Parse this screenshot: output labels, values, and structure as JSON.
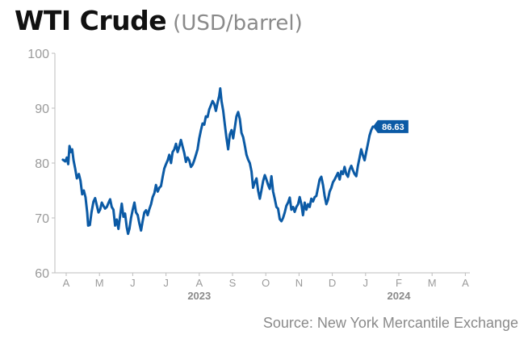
{
  "chart_data": {
    "type": "line",
    "title": "WTI Crude",
    "unit_label": "(USD/barrel)",
    "ylim": [
      60,
      100
    ],
    "yticks": [
      60,
      70,
      80,
      90,
      100
    ],
    "grid": false,
    "month_labels": [
      "A",
      "M",
      "J",
      "J",
      "A",
      "S",
      "O",
      "N",
      "D",
      "J",
      "F",
      "M",
      "A"
    ],
    "year_labels": [
      {
        "label": "2023",
        "under_month_index": 4
      },
      {
        "label": "2024",
        "under_month_index": 10
      }
    ],
    "last_value_label": "86.63",
    "series": [
      {
        "color": "#0b5aa5",
        "points": [
          [
            -0.1,
            80.6
          ],
          [
            -0.03,
            80.3
          ],
          [
            0.02,
            81.0
          ],
          [
            0.06,
            79.8
          ],
          [
            0.1,
            83.1
          ],
          [
            0.14,
            82.0
          ],
          [
            0.18,
            82.5
          ],
          [
            0.22,
            80.5
          ],
          [
            0.27,
            79.0
          ],
          [
            0.32,
            77.2
          ],
          [
            0.38,
            78.0
          ],
          [
            0.43,
            76.8
          ],
          [
            0.48,
            74.3
          ],
          [
            0.53,
            75.0
          ],
          [
            0.58,
            73.8
          ],
          [
            0.63,
            71.0
          ],
          [
            0.66,
            68.6
          ],
          [
            0.71,
            68.7
          ],
          [
            0.76,
            71.0
          ],
          [
            0.82,
            73.0
          ],
          [
            0.87,
            73.6
          ],
          [
            0.92,
            72.3
          ],
          [
            0.97,
            71.0
          ],
          [
            1.02,
            71.5
          ],
          [
            1.07,
            72.8
          ],
          [
            1.12,
            72.2
          ],
          [
            1.17,
            71.7
          ],
          [
            1.22,
            72.0
          ],
          [
            1.27,
            72.7
          ],
          [
            1.32,
            73.4
          ],
          [
            1.37,
            72.0
          ],
          [
            1.42,
            71.5
          ],
          [
            1.47,
            68.6
          ],
          [
            1.52,
            69.7
          ],
          [
            1.57,
            68.0
          ],
          [
            1.62,
            70.3
          ],
          [
            1.67,
            72.6
          ],
          [
            1.72,
            70.2
          ],
          [
            1.77,
            70.8
          ],
          [
            1.82,
            68.3
          ],
          [
            1.86,
            67.1
          ],
          [
            1.9,
            68.0
          ],
          [
            1.95,
            70.0
          ],
          [
            2.0,
            71.5
          ],
          [
            2.05,
            72.8
          ],
          [
            2.1,
            71.0
          ],
          [
            2.15,
            70.5
          ],
          [
            2.2,
            69.0
          ],
          [
            2.25,
            67.7
          ],
          [
            2.3,
            69.5
          ],
          [
            2.35,
            71.0
          ],
          [
            2.4,
            71.4
          ],
          [
            2.45,
            70.5
          ],
          [
            2.5,
            71.6
          ],
          [
            2.55,
            72.5
          ],
          [
            2.6,
            73.8
          ],
          [
            2.65,
            74.5
          ],
          [
            2.7,
            76.0
          ],
          [
            2.75,
            74.8
          ],
          [
            2.8,
            75.5
          ],
          [
            2.85,
            75.8
          ],
          [
            2.9,
            77.5
          ],
          [
            2.95,
            79.0
          ],
          [
            3.0,
            79.8
          ],
          [
            3.05,
            80.5
          ],
          [
            3.1,
            81.5
          ],
          [
            3.15,
            80.0
          ],
          [
            3.2,
            82.0
          ],
          [
            3.25,
            82.5
          ],
          [
            3.3,
            83.5
          ],
          [
            3.35,
            82.0
          ],
          [
            3.4,
            83.0
          ],
          [
            3.45,
            84.2
          ],
          [
            3.5,
            83.0
          ],
          [
            3.55,
            81.8
          ],
          [
            3.6,
            80.2
          ],
          [
            3.65,
            81.0
          ],
          [
            3.7,
            80.5
          ],
          [
            3.75,
            79.3
          ],
          [
            3.8,
            79.7
          ],
          [
            3.85,
            80.5
          ],
          [
            3.9,
            81.5
          ],
          [
            3.95,
            82.5
          ],
          [
            4.0,
            84.5
          ],
          [
            4.05,
            86.0
          ],
          [
            4.1,
            87.2
          ],
          [
            4.15,
            87.0
          ],
          [
            4.2,
            88.5
          ],
          [
            4.25,
            88.4
          ],
          [
            4.3,
            89.8
          ],
          [
            4.35,
            90.5
          ],
          [
            4.4,
            91.3
          ],
          [
            4.45,
            90.8
          ],
          [
            4.5,
            89.5
          ],
          [
            4.55,
            91.0
          ],
          [
            4.6,
            92.2
          ],
          [
            4.63,
            93.6
          ],
          [
            4.67,
            91.3
          ],
          [
            4.72,
            89.5
          ],
          [
            4.77,
            87.0
          ],
          [
            4.82,
            84.5
          ],
          [
            4.87,
            82.5
          ],
          [
            4.92,
            85.2
          ],
          [
            4.97,
            86.0
          ],
          [
            5.02,
            84.5
          ],
          [
            5.07,
            86.5
          ],
          [
            5.12,
            88.5
          ],
          [
            5.17,
            89.3
          ],
          [
            5.22,
            88.0
          ],
          [
            5.27,
            85.5
          ],
          [
            5.32,
            84.7
          ],
          [
            5.37,
            83.2
          ],
          [
            5.42,
            81.5
          ],
          [
            5.47,
            80.6
          ],
          [
            5.52,
            80.0
          ],
          [
            5.57,
            78.5
          ],
          [
            5.62,
            75.5
          ],
          [
            5.67,
            76.5
          ],
          [
            5.72,
            77.2
          ],
          [
            5.77,
            75.0
          ],
          [
            5.82,
            73.5
          ],
          [
            5.87,
            75.0
          ],
          [
            5.92,
            76.7
          ],
          [
            5.97,
            77.8
          ],
          [
            6.02,
            77.0
          ],
          [
            6.07,
            76.0
          ],
          [
            6.12,
            75.3
          ],
          [
            6.17,
            77.6
          ],
          [
            6.22,
            74.8
          ],
          [
            6.27,
            73.5
          ],
          [
            6.32,
            72.0
          ],
          [
            6.37,
            71.7
          ],
          [
            6.42,
            69.8
          ],
          [
            6.47,
            69.4
          ],
          [
            6.52,
            70.0
          ],
          [
            6.57,
            71.0
          ],
          [
            6.62,
            72.2
          ],
          [
            6.67,
            72.8
          ],
          [
            6.72,
            73.7
          ],
          [
            6.77,
            71.5
          ],
          [
            6.82,
            72.0
          ],
          [
            6.87,
            71.1
          ],
          [
            6.92,
            72.0
          ],
          [
            6.97,
            72.5
          ],
          [
            7.02,
            73.8
          ],
          [
            7.07,
            72.5
          ],
          [
            7.12,
            70.5
          ],
          [
            7.17,
            72.8
          ],
          [
            7.22,
            71.5
          ],
          [
            7.27,
            72.5
          ],
          [
            7.32,
            72.0
          ],
          [
            7.37,
            73.5
          ],
          [
            7.42,
            73.0
          ],
          [
            7.47,
            73.8
          ],
          [
            7.52,
            74.0
          ],
          [
            7.57,
            75.5
          ],
          [
            7.62,
            77.0
          ],
          [
            7.67,
            77.5
          ],
          [
            7.72,
            76.0
          ],
          [
            7.77,
            74.0
          ],
          [
            7.82,
            72.5
          ],
          [
            7.87,
            73.3
          ],
          [
            7.92,
            74.8
          ],
          [
            7.97,
            75.5
          ],
          [
            8.02,
            76.5
          ],
          [
            8.07,
            77.0
          ],
          [
            8.12,
            77.6
          ],
          [
            8.17,
            78.2
          ],
          [
            8.22,
            77.0
          ],
          [
            8.27,
            78.5
          ],
          [
            8.32,
            78.0
          ],
          [
            8.37,
            79.3
          ],
          [
            8.42,
            78.0
          ],
          [
            8.47,
            77.5
          ],
          [
            8.52,
            78.8
          ],
          [
            8.57,
            79.5
          ],
          [
            8.62,
            78.7
          ],
          [
            8.67,
            78.0
          ],
          [
            8.72,
            77.6
          ],
          [
            8.77,
            79.5
          ],
          [
            8.82,
            81.0
          ],
          [
            8.87,
            82.5
          ],
          [
            8.92,
            81.4
          ],
          [
            8.97,
            80.5
          ],
          [
            9.02,
            82.0
          ],
          [
            9.07,
            83.5
          ],
          [
            9.12,
            85.0
          ],
          [
            9.17,
            86.0
          ],
          [
            9.22,
            86.63
          ]
        ]
      }
    ]
  },
  "source": "Source: New York Mercantile Exchange"
}
